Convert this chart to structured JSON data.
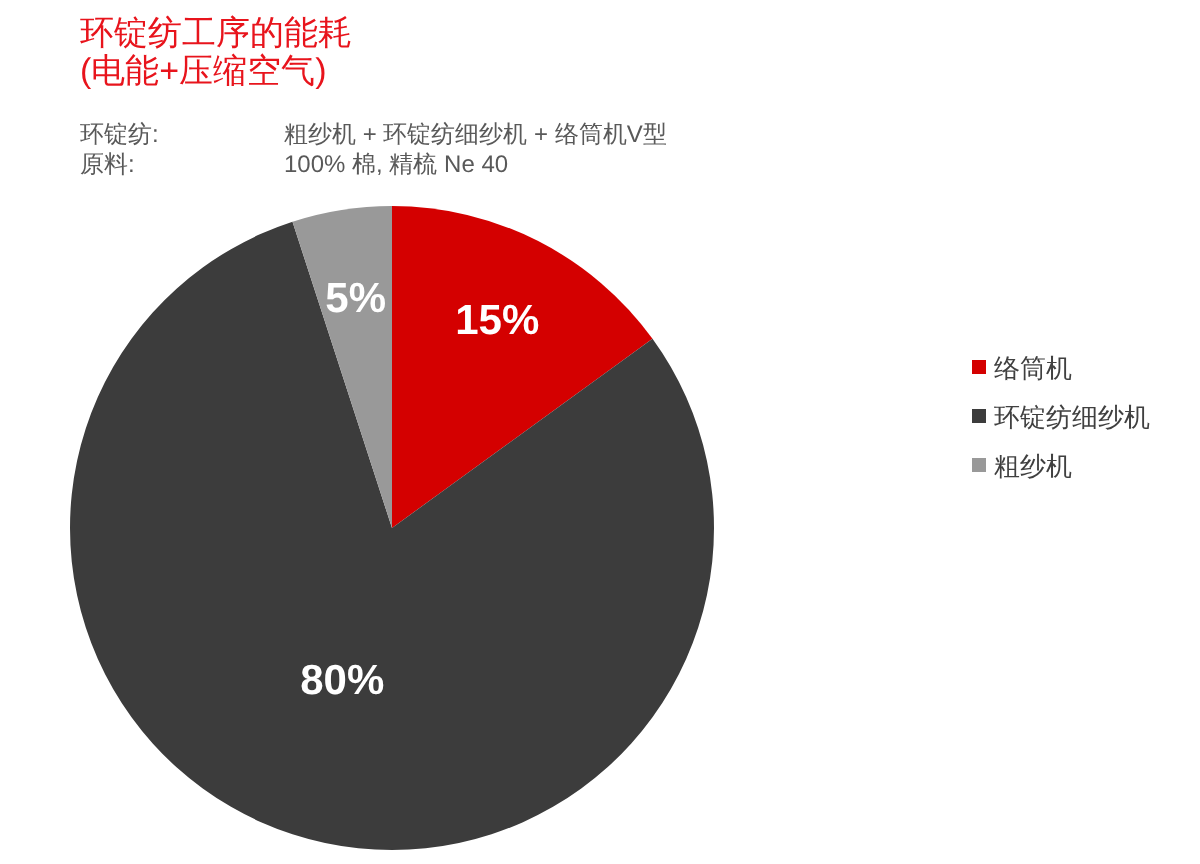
{
  "chart_data": {
    "type": "pie",
    "title": "环锭纺工序的能耗\n(电能+压缩空气)",
    "annotations": [
      "环锭纺:",
      "粗纱机 + 环锭纺细纱机 + 络筒机V型",
      "原料:",
      "100% 棉, 精梳 Ne 40"
    ],
    "categories": [
      "络筒机",
      "环锭纺细纱机",
      "粗纱机"
    ],
    "values": [
      15,
      80,
      5
    ],
    "colors": [
      "#d40000",
      "#3c3c3c",
      "#999999"
    ],
    "value_labels": [
      "15%",
      "80%",
      "5%"
    ],
    "legend": "right"
  }
}
